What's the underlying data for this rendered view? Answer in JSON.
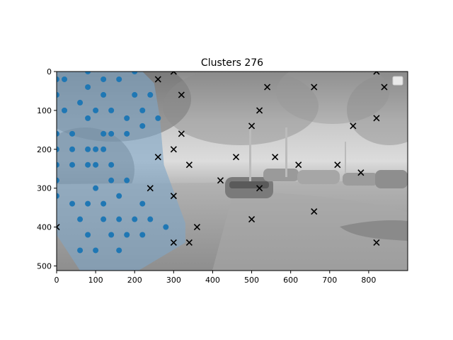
{
  "chart_data": {
    "type": "scatter",
    "title": "Clusters 276",
    "xlabel": "",
    "ylabel": "",
    "xlim": [
      0,
      900
    ],
    "ylim": [
      512,
      0
    ],
    "x_ticks": [
      0,
      100,
      200,
      300,
      400,
      500,
      600,
      700,
      800
    ],
    "y_ticks": [
      0,
      100,
      200,
      300,
      400,
      500
    ],
    "grid": false,
    "legend": "top-right (empty)",
    "background": "grayscale photo of a parking lot with trees and parked cars",
    "colors": {
      "cluster_points": "#1f77b4",
      "region_fill": "#7fa6c6",
      "cross_points": "#000000"
    },
    "region_polygon": [
      [
        0,
        0
      ],
      [
        220,
        0
      ],
      [
        250,
        30
      ],
      [
        265,
        120
      ],
      [
        275,
        240
      ],
      [
        330,
        390
      ],
      [
        330,
        440
      ],
      [
        210,
        512
      ],
      [
        60,
        512
      ],
      [
        0,
        420
      ]
    ],
    "series": [
      {
        "marker": "circle",
        "color": "#1f77b4",
        "points": [
          [
            0,
            20
          ],
          [
            20,
            20
          ],
          [
            80,
            0
          ],
          [
            120,
            20
          ],
          [
            160,
            20
          ],
          [
            200,
            0
          ],
          [
            0,
            60
          ],
          [
            80,
            40
          ],
          [
            120,
            60
          ],
          [
            200,
            60
          ],
          [
            240,
            60
          ],
          [
            20,
            100
          ],
          [
            60,
            80
          ],
          [
            100,
            100
          ],
          [
            140,
            100
          ],
          [
            180,
            120
          ],
          [
            220,
            100
          ],
          [
            260,
            120
          ],
          [
            0,
            160
          ],
          [
            40,
            160
          ],
          [
            80,
            120
          ],
          [
            120,
            160
          ],
          [
            140,
            160
          ],
          [
            180,
            160
          ],
          [
            220,
            140
          ],
          [
            0,
            200
          ],
          [
            40,
            200
          ],
          [
            80,
            200
          ],
          [
            100,
            200
          ],
          [
            120,
            200
          ],
          [
            0,
            240
          ],
          [
            40,
            240
          ],
          [
            80,
            240
          ],
          [
            100,
            240
          ],
          [
            140,
            240
          ],
          [
            0,
            280
          ],
          [
            100,
            300
          ],
          [
            140,
            280
          ],
          [
            180,
            280
          ],
          [
            0,
            320
          ],
          [
            40,
            340
          ],
          [
            80,
            340
          ],
          [
            120,
            340
          ],
          [
            160,
            320
          ],
          [
            220,
            340
          ],
          [
            60,
            380
          ],
          [
            120,
            380
          ],
          [
            160,
            380
          ],
          [
            200,
            380
          ],
          [
            240,
            380
          ],
          [
            280,
            400
          ],
          [
            80,
            420
          ],
          [
            140,
            420
          ],
          [
            180,
            420
          ],
          [
            220,
            420
          ],
          [
            60,
            460
          ],
          [
            100,
            460
          ],
          [
            160,
            460
          ]
        ]
      },
      {
        "marker": "x",
        "color": "#000000",
        "points": [
          [
            300,
            0
          ],
          [
            820,
            0
          ],
          [
            260,
            20
          ],
          [
            540,
            40
          ],
          [
            660,
            40
          ],
          [
            840,
            40
          ],
          [
            320,
            60
          ],
          [
            520,
            100
          ],
          [
            500,
            140
          ],
          [
            760,
            140
          ],
          [
            820,
            120
          ],
          [
            320,
            160
          ],
          [
            300,
            200
          ],
          [
            260,
            220
          ],
          [
            460,
            220
          ],
          [
            560,
            220
          ],
          [
            340,
            240
          ],
          [
            620,
            240
          ],
          [
            720,
            240
          ],
          [
            780,
            260
          ],
          [
            420,
            280
          ],
          [
            240,
            300
          ],
          [
            520,
            300
          ],
          [
            300,
            320
          ],
          [
            660,
            360
          ],
          [
            500,
            380
          ],
          [
            0,
            400
          ],
          [
            360,
            400
          ],
          [
            300,
            440
          ],
          [
            340,
            440
          ],
          [
            820,
            440
          ]
        ]
      }
    ]
  }
}
